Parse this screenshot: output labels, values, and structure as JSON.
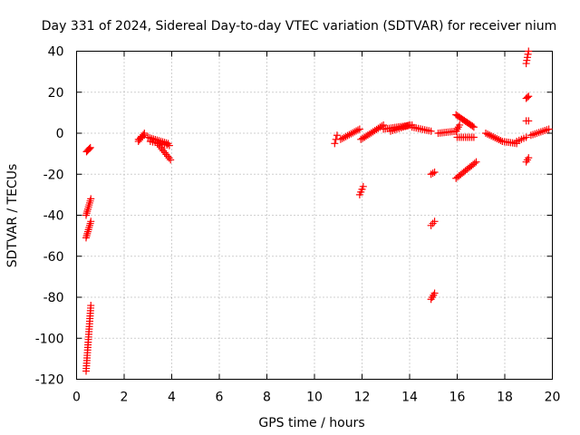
{
  "chart_data": {
    "type": "scatter",
    "title": "Day 331 of 2024, Sidereal Day-to-day VTEC variation (SDTVAR) for receiver nium",
    "xlabel": "GPS time / hours",
    "ylabel": "SDTVAR / TECUs",
    "xlim": [
      0,
      20
    ],
    "ylim": [
      -120,
      40
    ],
    "xticks": [
      0,
      2,
      4,
      6,
      8,
      10,
      12,
      14,
      16,
      18,
      20
    ],
    "yticks": [
      -120,
      -100,
      -80,
      -60,
      -40,
      -20,
      0,
      20,
      40
    ],
    "grid": true,
    "marker": "plus",
    "color": "#ff0000",
    "series": [
      {
        "name": "sdtvar",
        "segments": [
          {
            "x": [
              0.4,
              0.6
            ],
            "y": [
              -116,
              -84
            ],
            "n": 26
          },
          {
            "x": [
              0.4,
              0.6
            ],
            "y": [
              -40,
              -32
            ],
            "n": 9
          },
          {
            "x": [
              0.4,
              0.6
            ],
            "y": [
              -51,
              -43
            ],
            "n": 9
          },
          {
            "x": [
              0.42,
              0.58
            ],
            "y": [
              -9,
              -7
            ],
            "n": 5
          },
          {
            "x": [
              2.6,
              2.85
            ],
            "y": [
              -4,
              0
            ],
            "n": 6
          },
          {
            "x": [
              2.6,
              2.85
            ],
            "y": [
              -3,
              -1
            ],
            "n": 4
          },
          {
            "x": [
              3.0,
              3.85
            ],
            "y": [
              -2,
              -5
            ],
            "n": 12
          },
          {
            "x": [
              3.4,
              3.95
            ],
            "y": [
              -5,
              -13
            ],
            "n": 10
          },
          {
            "x": [
              3.1,
              3.9
            ],
            "y": [
              -4,
              -6
            ],
            "n": 9
          },
          {
            "x": [
              10.85,
              10.95
            ],
            "y": [
              -5,
              -1
            ],
            "n": 3
          },
          {
            "x": [
              11.1,
              11.9
            ],
            "y": [
              -3,
              2
            ],
            "n": 12
          },
          {
            "x": [
              11.9,
              12.05
            ],
            "y": [
              -30,
              -26
            ],
            "n": 4
          },
          {
            "x": [
              11.95,
              12.1
            ],
            "y": [
              -3,
              -2
            ],
            "n": 3
          },
          {
            "x": [
              12.1,
              12.9
            ],
            "y": [
              -2,
              4
            ],
            "n": 12
          },
          {
            "x": [
              12.9,
              14.1
            ],
            "y": [
              2,
              4
            ],
            "n": 16
          },
          {
            "x": [
              13.2,
              14.0
            ],
            "y": [
              1,
              4
            ],
            "n": 10
          },
          {
            "x": [
              14.1,
              14.9
            ],
            "y": [
              3,
              1
            ],
            "n": 10
          },
          {
            "x": [
              14.9,
              15.05
            ],
            "y": [
              -20,
              -19
            ],
            "n": 3
          },
          {
            "x": [
              14.9,
              15.05
            ],
            "y": [
              -45,
              -43
            ],
            "n": 3
          },
          {
            "x": [
              14.9,
              15.05
            ],
            "y": [
              -81,
              -78
            ],
            "n": 4
          },
          {
            "x": [
              15.2,
              15.95
            ],
            "y": [
              0,
              1
            ],
            "n": 10
          },
          {
            "x": [
              15.95,
              16.7
            ],
            "y": [
              9,
              3
            ],
            "n": 14
          },
          {
            "x": [
              15.95,
              16.1
            ],
            "y": [
              1,
              4
            ],
            "n": 4
          },
          {
            "x": [
              16.0,
              16.7
            ],
            "y": [
              -2,
              -2
            ],
            "n": 9
          },
          {
            "x": [
              15.95,
              16.8
            ],
            "y": [
              -22,
              -14
            ],
            "n": 14
          },
          {
            "x": [
              17.2,
              17.9
            ],
            "y": [
              0,
              -4
            ],
            "n": 10
          },
          {
            "x": [
              17.9,
              18.5
            ],
            "y": [
              -4,
              -5
            ],
            "n": 8
          },
          {
            "x": [
              18.5,
              18.9
            ],
            "y": [
              -4,
              -2
            ],
            "n": 5
          },
          {
            "x": [
              18.9,
              19.0
            ],
            "y": [
              34,
              40
            ],
            "n": 5
          },
          {
            "x": [
              18.9,
              19.0
            ],
            "y": [
              17,
              18
            ],
            "n": 3
          },
          {
            "x": [
              18.9,
              19.0
            ],
            "y": [
              6,
              6
            ],
            "n": 2
          },
          {
            "x": [
              18.9,
              19.0
            ],
            "y": [
              -14,
              -12
            ],
            "n": 3
          },
          {
            "x": [
              19.1,
              19.85
            ],
            "y": [
              -1,
              2
            ],
            "n": 10
          }
        ]
      }
    ]
  }
}
